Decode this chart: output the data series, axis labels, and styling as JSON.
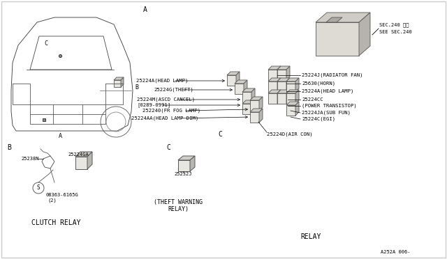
{
  "bg_color": "#ffffff",
  "sec240_text1": "SEC.240 参照",
  "sec240_text2": "SEE SEC.240",
  "label_A": "A",
  "label_B": "B",
  "label_C_car": "C",
  "label_C_relay": "C",
  "left_labels": [
    "25224A(HEAD LAMP)",
    "25224G(THEFT)",
    "25224M(ASCD CANCEL)",
    "[0289-0991]",
    "252240(FR FOG LAMP)",
    "25224AA(HEAD LAMP DIM)"
  ],
  "right_labels": [
    "25224J(RADIATOR FAN)",
    "25630(HORN)",
    "25224A(HEAD LAMP)",
    "25224CC",
    "(POWER TRANSISTOP)",
    "25224JA(SUB FUN)",
    "25224C(EGI)"
  ],
  "bottom_label": "25224D(AIR CON)",
  "b_label1": "25224GA",
  "b_label2": "25238N",
  "b_label3": "08363-6165G",
  "b_label4": "(2)",
  "b_caption": "CLUTCH RELAY",
  "c_label": "25232J",
  "c_caption1": "(THEFT WARNING",
  "c_caption2": "RELAY)",
  "relay_caption": "RELAY",
  "part_num": "A252A 006-"
}
